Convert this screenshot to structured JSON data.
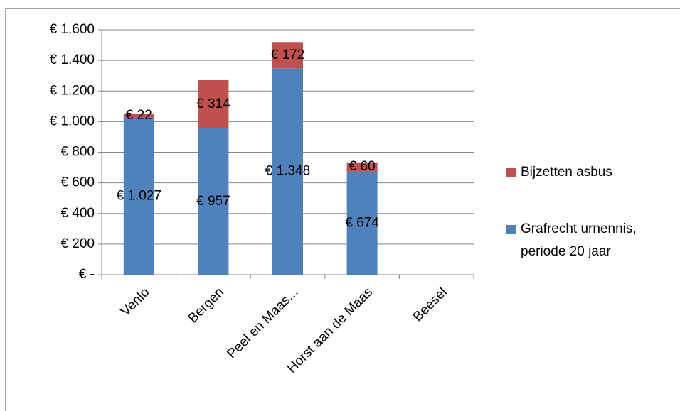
{
  "chart_data": {
    "type": "stacked_bar",
    "categories": [
      "Venlo",
      "Bergen",
      "Peel en Maas...",
      "Horst aan de Maas",
      "Beesel"
    ],
    "series": [
      {
        "name": "Grafrecht urnennis, periode 20 jaar",
        "color": "#4f81bd",
        "values": [
          1027,
          957,
          1348,
          674,
          null
        ],
        "value_labels": [
          "€ 1.027",
          "€ 957",
          "€ 1.348",
          "€ 674",
          null
        ]
      },
      {
        "name": "Bijzetten asbus",
        "color": "#c0504d",
        "values": [
          22,
          314,
          172,
          60,
          null
        ],
        "value_labels": [
          "€ 22",
          "€ 314",
          "€ 172",
          "€ 60",
          null
        ]
      }
    ],
    "ylim": [
      0,
      1600
    ],
    "yticks": [
      {
        "value": 0,
        "label": "€ -"
      },
      {
        "value": 200,
        "label": "€ 200"
      },
      {
        "value": 400,
        "label": "€ 400"
      },
      {
        "value": 600,
        "label": "€ 600"
      },
      {
        "value": 800,
        "label": "€ 800"
      },
      {
        "value": 1000,
        "label": "€ 1.000"
      },
      {
        "value": 1200,
        "label": "€ 1.200"
      },
      {
        "value": 1400,
        "label": "€ 1.400"
      },
      {
        "value": 1600,
        "label": "€ 1.600"
      }
    ],
    "grid": true
  }
}
